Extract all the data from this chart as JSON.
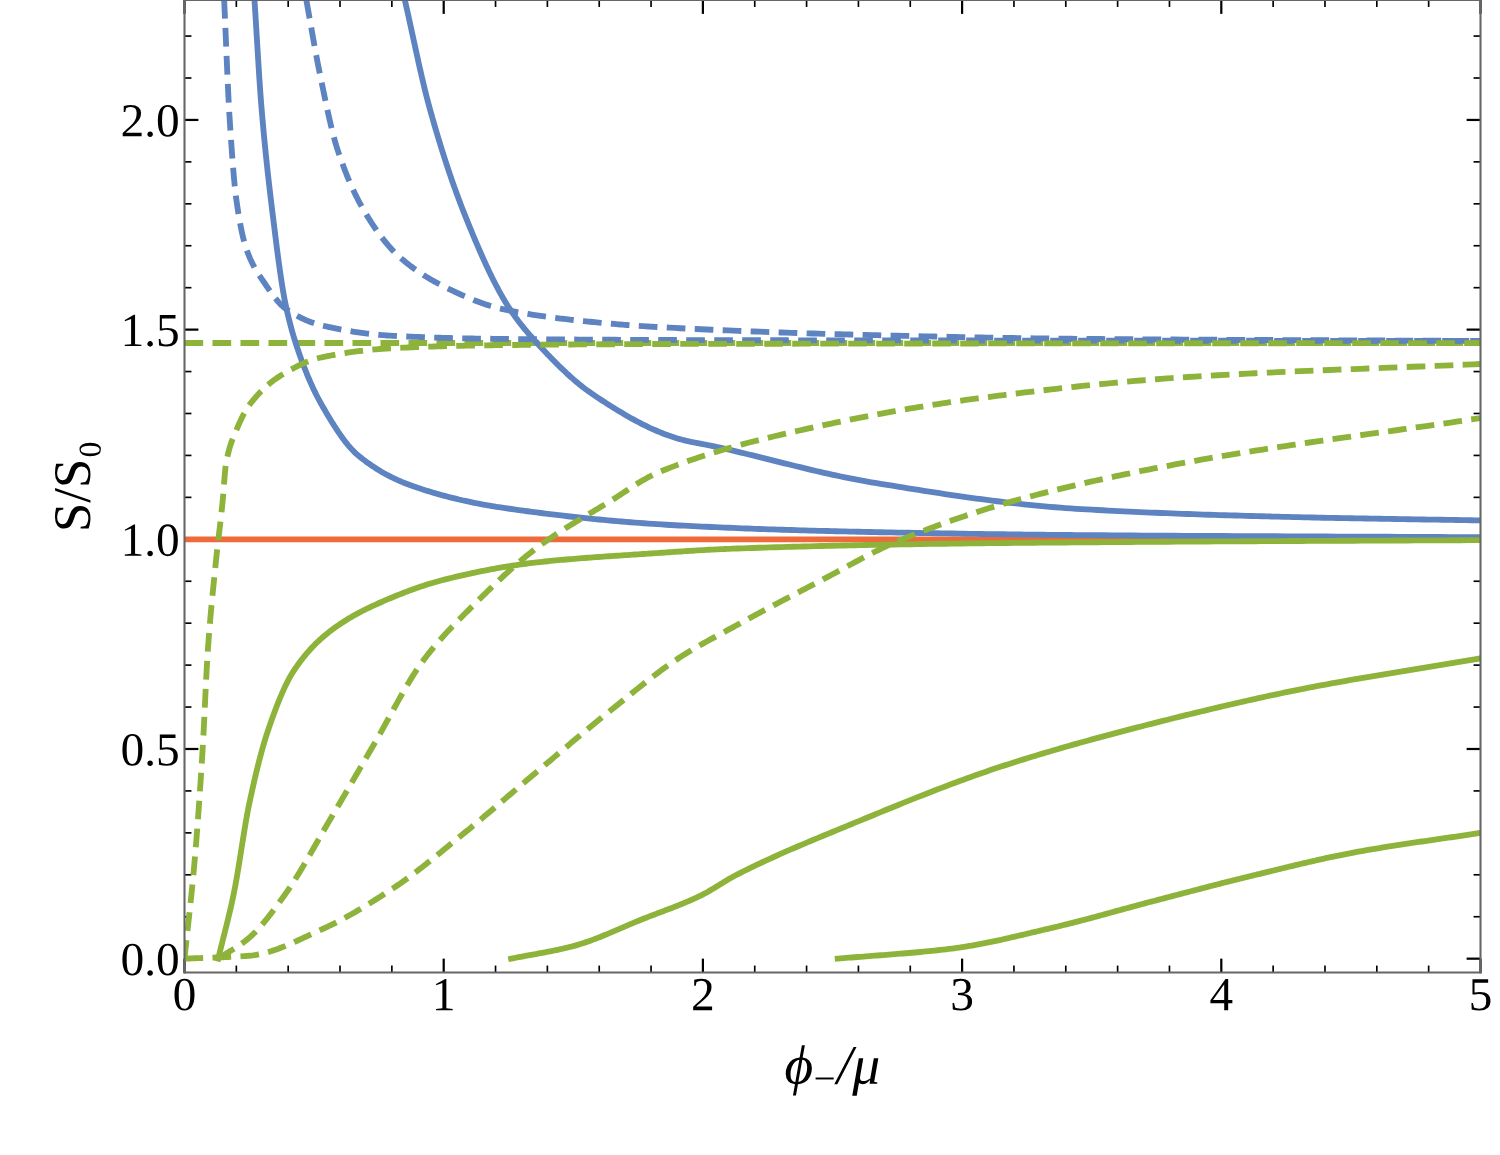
{
  "chart_data": {
    "type": "line",
    "xlabel": "ϕ$_{−}$/μ",
    "ylabel": "S/S₀",
    "xlim": [
      0,
      5
    ],
    "ylim": [
      -0.033,
      2.286
    ],
    "xticks": [
      0,
      1,
      2,
      3,
      4,
      5
    ],
    "yticks": [
      {
        "value": 0,
        "label": "0.0"
      },
      {
        "value": 0.5,
        "label": "0.5"
      },
      {
        "value": 1,
        "label": "1.0"
      },
      {
        "value": 1.5,
        "label": "1.5"
      },
      {
        "value": 2,
        "label": "2.0"
      }
    ],
    "grid": false,
    "marker": "none",
    "series": [
      {
        "color": "#ee6a3a",
        "line_style": "solid",
        "x": [
          0,
          5
        ],
        "values": [
          1.0,
          1.0
        ]
      },
      {
        "color": "#8db33a",
        "line_style": "dashed",
        "x": [
          0,
          5
        ],
        "values": [
          1.468,
          1.468
        ]
      },
      {
        "color": "#5d83c0",
        "line_style": "dashed",
        "x": [
          0.153,
          0.174,
          0.2,
          0.24,
          0.31,
          0.39,
          0.53,
          0.81,
          1.2,
          2.0,
          3.0,
          5.0
        ],
        "values": [
          2.286,
          2.005,
          1.81,
          1.69,
          1.61,
          1.55,
          1.51,
          1.485,
          1.478,
          1.475,
          1.474,
          1.473
        ]
      },
      {
        "color": "#5d83c0",
        "line_style": "solid",
        "x": [
          0.27,
          0.297,
          0.34,
          0.39,
          0.45,
          0.53,
          0.67,
          0.88,
          1.22,
          1.91,
          2.6,
          3.46,
          5.0
        ],
        "values": [
          2.286,
          2.03,
          1.776,
          1.56,
          1.43,
          1.32,
          1.2,
          1.127,
          1.076,
          1.033,
          1.018,
          1.01,
          1.005
        ]
      },
      {
        "color": "#5d83c0",
        "line_style": "dashed",
        "x": [
          0.47,
          0.52,
          0.59,
          0.7,
          0.83,
          1.01,
          1.22,
          1.5,
          1.83,
          2.65,
          3.46,
          5.0
        ],
        "values": [
          2.286,
          2.117,
          1.93,
          1.776,
          1.673,
          1.6,
          1.55,
          1.523,
          1.506,
          1.487,
          1.478,
          1.473
        ]
      },
      {
        "color": "#5d83c0",
        "line_style": "solid",
        "x": [
          0.85,
          0.945,
          1.08,
          1.25,
          1.36,
          1.57,
          1.91,
          2.04,
          2.65,
          3.46,
          4.28,
          5.0
        ],
        "values": [
          2.286,
          2.03,
          1.776,
          1.554,
          1.468,
          1.348,
          1.239,
          1.222,
          1.136,
          1.072,
          1.053,
          1.045
        ]
      },
      {
        "color": "#8db33a",
        "line_style": "dashed",
        "x": [
          0,
          0.04,
          0.07,
          0.09,
          0.12,
          0.147,
          0.16,
          0.2,
          0.25,
          0.37,
          0.53,
          0.81,
          1.22,
          2.0,
          5.0
        ],
        "values": [
          0,
          0.24,
          0.5,
          0.735,
          0.94,
          1.09,
          1.18,
          1.26,
          1.32,
          1.39,
          1.434,
          1.456,
          1.463,
          1.466,
          1.468
        ]
      },
      {
        "color": "#8db33a",
        "line_style": "solid",
        "x": [
          0.13,
          0.19,
          0.25,
          0.32,
          0.42,
          0.56,
          0.74,
          1.01,
          1.36,
          1.77,
          2.13,
          3.0,
          4.0,
          5.0
        ],
        "values": [
          0,
          0.155,
          0.37,
          0.54,
          0.685,
          0.78,
          0.845,
          0.905,
          0.945,
          0.965,
          0.978,
          0.99,
          0.995,
          0.998
        ]
      },
      {
        "color": "#8db33a",
        "line_style": "dashed",
        "x": [
          0.13,
          0.25,
          0.39,
          0.56,
          0.73,
          0.92,
          1.11,
          1.36,
          1.64,
          1.83,
          2.45,
          3.06,
          3.87,
          5.0
        ],
        "values": [
          0,
          0.05,
          0.155,
          0.33,
          0.51,
          0.71,
          0.84,
          0.98,
          1.09,
          1.16,
          1.27,
          1.336,
          1.387,
          1.418
        ]
      },
      {
        "color": "#8db33a",
        "line_style": "dashed",
        "x": [
          0,
          0.25,
          0.53,
          0.81,
          1.08,
          1.36,
          1.64,
          1.91,
          2.13,
          2.45,
          2.75,
          3.22,
          3.87,
          5.0
        ],
        "values": [
          0,
          0.007,
          0.07,
          0.17,
          0.3,
          0.446,
          0.59,
          0.718,
          0.795,
          0.9,
          0.995,
          1.095,
          1.184,
          1.289
        ]
      },
      {
        "color": "#8db33a",
        "line_style": "solid",
        "x": [
          1.26,
          1.5,
          1.77,
          1.99,
          2.13,
          2.57,
          3.15,
          3.73,
          4.32,
          5.0
        ],
        "values": [
          0,
          0.03,
          0.095,
          0.15,
          0.2,
          0.32,
          0.458,
          0.56,
          0.644,
          0.716
        ]
      },
      {
        "color": "#8db33a",
        "line_style": "solid",
        "x": [
          2.52,
          2.96,
          3.35,
          3.73,
          4.12,
          4.51,
          5.0
        ],
        "values": [
          0,
          0.024,
          0.074,
          0.136,
          0.198,
          0.253,
          0.3
        ]
      }
    ]
  }
}
